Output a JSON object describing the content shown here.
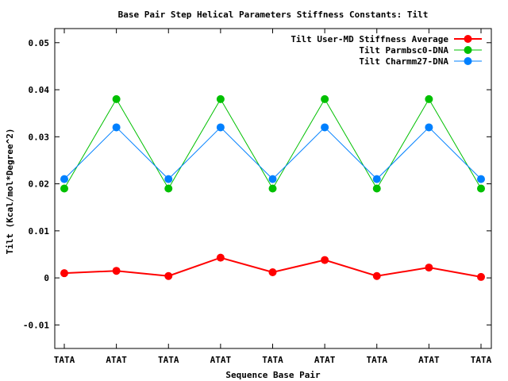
{
  "chart_data": {
    "type": "line",
    "title": "Base Pair Step Helical Parameters Stiffness Constants: Tilt",
    "xlabel": "Sequence Base Pair",
    "ylabel": "Tilt (Kcal/mol*Degree^2)",
    "categories": [
      "TATA",
      "ATAT",
      "TATA",
      "ATAT",
      "TATA",
      "ATAT",
      "TATA",
      "ATAT",
      "TATA"
    ],
    "ylim": [
      -0.015,
      0.053
    ],
    "yticks": [
      -0.01,
      0,
      0.01,
      0.02,
      0.03,
      0.04,
      0.05
    ],
    "ytick_labels": [
      "-0.01",
      "0",
      "0.01",
      "0.02",
      "0.03",
      "0.04",
      "0.05"
    ],
    "grid": false,
    "legend_position": "top-right",
    "series": [
      {
        "name": "Tilt User-MD Stiffness Average",
        "color": "#ff0000",
        "values": [
          0.001,
          0.0015,
          0.0004,
          0.0043,
          0.0012,
          0.0038,
          0.0004,
          0.0022,
          0.0002
        ]
      },
      {
        "name": "Tilt Parmbsc0-DNA",
        "color": "#00c000",
        "values": [
          0.019,
          0.038,
          0.019,
          0.038,
          0.019,
          0.038,
          0.019,
          0.038,
          0.019
        ]
      },
      {
        "name": "Tilt Charmm27-DNA",
        "color": "#0080ff",
        "values": [
          0.021,
          0.032,
          0.021,
          0.032,
          0.021,
          0.032,
          0.021,
          0.032,
          0.021
        ]
      }
    ]
  }
}
